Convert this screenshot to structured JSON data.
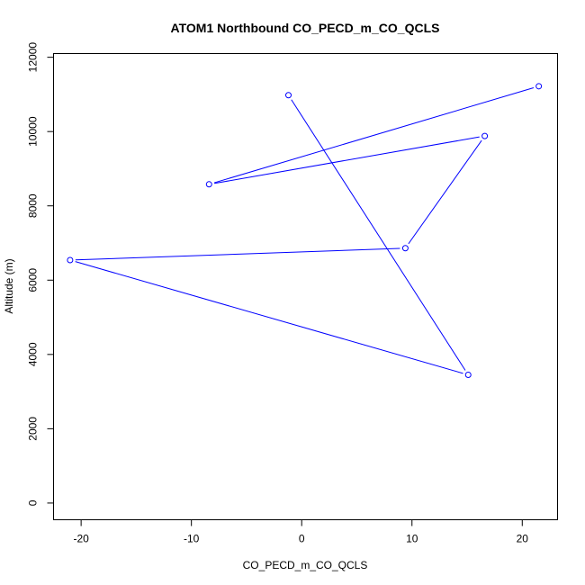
{
  "chart_data": {
    "type": "line",
    "title": "ATOM1 Northbound CO_PECD_m_CO_QCLS",
    "xlabel": "CO_PECD_m_CO_QCLS",
    "ylabel": "Altitude (m)",
    "xlim": [
      -22.5,
      23.2
    ],
    "ylim": [
      -450,
      12100
    ],
    "x_ticks": [
      -20,
      -10,
      0,
      10,
      20
    ],
    "y_ticks": [
      0,
      2000,
      4000,
      6000,
      8000,
      10000,
      12000
    ],
    "x_tick_labels": [
      "-20",
      "-10",
      "0",
      "10",
      "20"
    ],
    "y_tick_labels": [
      "0",
      "2000",
      "4000",
      "6000",
      "8000",
      "10000",
      "12000"
    ],
    "grid": false,
    "series": [
      {
        "color": "#0000ff",
        "marker": "open-circle",
        "points": [
          {
            "x": -1.2,
            "y": 10980
          },
          {
            "x": 15.1,
            "y": 3450
          },
          {
            "x": -21.0,
            "y": 6540
          },
          {
            "x": 9.4,
            "y": 6860
          },
          {
            "x": 16.6,
            "y": 9880
          },
          {
            "x": -8.4,
            "y": 8580
          },
          {
            "x": 21.5,
            "y": 11220
          }
        ]
      }
    ]
  }
}
